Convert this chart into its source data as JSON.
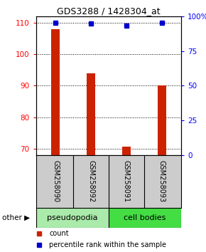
{
  "title": "GDS3288 / 1428304_at",
  "samples": [
    "GSM258090",
    "GSM258092",
    "GSM258091",
    "GSM258093"
  ],
  "bar_values": [
    108.0,
    94.0,
    70.7,
    90.0
  ],
  "percentile_values": [
    95.5,
    94.7,
    93.2,
    95.2
  ],
  "bar_color": "#cc2200",
  "percentile_color": "#0000cc",
  "ylim_left": [
    68,
    112
  ],
  "yticks_left": [
    70,
    80,
    90,
    100,
    110
  ],
  "ylim_right": [
    0,
    100
  ],
  "yticks_right": [
    0,
    25,
    50,
    75,
    100
  ],
  "ytick_labels_right": [
    "0",
    "25",
    "50",
    "75",
    "100%"
  ],
  "bar_width": 0.25,
  "background_color": "#ffffff",
  "plot_bg": "#ffffff",
  "x_positions": [
    0,
    1,
    2,
    3
  ],
  "group_pseudo_color": "#aaeaaa",
  "group_cell_color": "#44dd44",
  "xlabels_bg": "#cccccc"
}
